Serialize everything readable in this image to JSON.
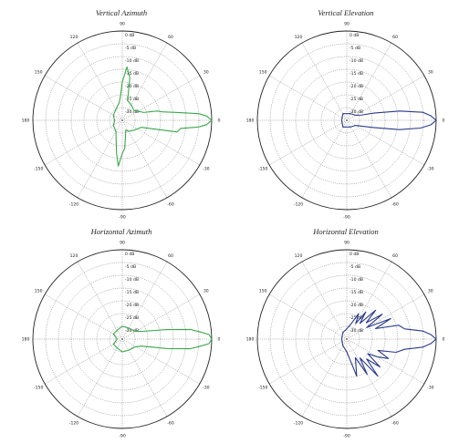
{
  "chart_data": [
    {
      "type": "polar-line",
      "title": "Vertical Azimuth",
      "color": "#3aa84a",
      "r_labels": [
        "0 dB",
        "-5 dB",
        "-10 dB",
        "-15 dB",
        "-20 dB",
        "-25 dB",
        "-30 dB"
      ],
      "angle_labels": [
        "90",
        "60",
        "30",
        "0",
        "-30",
        "-60",
        "-90",
        "-120",
        "-150",
        "180",
        "150",
        "120"
      ],
      "rlim": [
        -35,
        0
      ],
      "grid": true,
      "series": [
        {
          "angles": [
            -180,
            -150,
            -120,
            -100,
            -95,
            -90,
            -85,
            -80,
            -70,
            -60,
            -40,
            -20,
            -12,
            -8,
            -5,
            -3,
            0,
            3,
            5,
            8,
            12,
            15,
            20,
            40,
            60,
            75,
            80,
            85,
            90,
            95,
            100,
            120,
            150,
            180
          ],
          "values": [
            -32,
            -31,
            -30,
            -22,
            -17,
            -22,
            -24,
            -28,
            -31,
            -30,
            -29,
            -27,
            -13,
            -12,
            -5,
            -2,
            0,
            -2,
            -5,
            -13,
            -19,
            -21,
            -26,
            -29,
            -28,
            -27,
            -18,
            -14,
            -20,
            -26,
            -28,
            -30,
            -31,
            -32
          ]
        }
      ]
    },
    {
      "type": "polar-line",
      "title": "Vertical Elevation",
      "color": "#2a3a8c",
      "r_labels": [
        "0 dB",
        "-5 dB",
        "-10 dB",
        "-15 dB",
        "-20 dB",
        "-25 dB",
        "-30 dB"
      ],
      "angle_labels": [
        "90",
        "60",
        "30",
        "0",
        "-30",
        "-60",
        "-90",
        "-120",
        "-150",
        "180",
        "150",
        "120"
      ],
      "rlim": [
        -35,
        0
      ],
      "grid": true,
      "series": [
        {
          "angles": [
            -180,
            -120,
            -60,
            -30,
            -20,
            -15,
            -10,
            -6,
            -3,
            0,
            3,
            6,
            10,
            15,
            20,
            30,
            60,
            120,
            180
          ],
          "values": [
            -33,
            -32,
            -32,
            -31,
            -28,
            -24,
            -14,
            -6,
            -2,
            0,
            -2,
            -5,
            -14,
            -24,
            -29,
            -31,
            -32,
            -32,
            -33
          ]
        }
      ]
    },
    {
      "type": "polar-line",
      "title": "Horizontal Azimuth",
      "color": "#3aa84a",
      "r_labels": [
        "0 dB",
        "-5 dB",
        "-10 dB",
        "-15 dB",
        "-20 dB",
        "-25 dB",
        "-30 dB"
      ],
      "angle_labels": [
        "90",
        "60",
        "30",
        "0",
        "-30",
        "-60",
        "-90",
        "-120",
        "-150",
        "180",
        "150",
        "120"
      ],
      "rlim": [
        -35,
        0
      ],
      "grid": true,
      "series": [
        {
          "angles": [
            -180,
            -150,
            -120,
            -90,
            -60,
            -30,
            -20,
            -12,
            -8,
            -5,
            -3,
            0,
            3,
            5,
            8,
            12,
            20,
            30,
            60,
            90,
            120,
            150,
            180
          ],
          "values": [
            -33,
            -31,
            -31,
            -30,
            -30,
            -29,
            -27,
            -17,
            -8,
            -4,
            -1,
            0,
            -1,
            -4,
            -8,
            -17,
            -26,
            -29,
            -30,
            -30,
            -31,
            -31,
            -33
          ]
        }
      ]
    },
    {
      "type": "polar-line",
      "title": "Horizontal Elevation",
      "color": "#2a3a8c",
      "r_labels": [
        "0 dB",
        "-5 dB",
        "-10 dB",
        "-15 dB",
        "-20 dB",
        "-25 dB",
        "-30 dB"
      ],
      "angle_labels": [
        "90",
        "60",
        "30",
        "0",
        "-30",
        "-60",
        "-90",
        "-120",
        "-150",
        "180",
        "150",
        "120"
      ],
      "rlim": [
        -35,
        0
      ],
      "grid": true,
      "series": [
        {
          "angles": [
            -180,
            -120,
            -90,
            -75,
            -65,
            -60,
            -55,
            -50,
            -45,
            -40,
            -35,
            -30,
            -25,
            -20,
            -15,
            -10,
            -6,
            -3,
            0,
            3,
            6,
            10,
            15,
            20,
            25,
            30,
            35,
            40,
            45,
            50,
            55,
            60,
            65,
            75,
            90,
            120,
            180
          ],
          "values": [
            -33,
            -32,
            -30,
            -20,
            -27,
            -19,
            -26,
            -16,
            -24,
            -18,
            -25,
            -21,
            -17,
            -22,
            -15,
            -12,
            -5,
            -2,
            0,
            -2,
            -5,
            -12,
            -14,
            -23,
            -16,
            -26,
            -18,
            -25,
            -19,
            -27,
            -22,
            -28,
            -24,
            -29,
            -31,
            -32,
            -33
          ]
        }
      ]
    }
  ]
}
